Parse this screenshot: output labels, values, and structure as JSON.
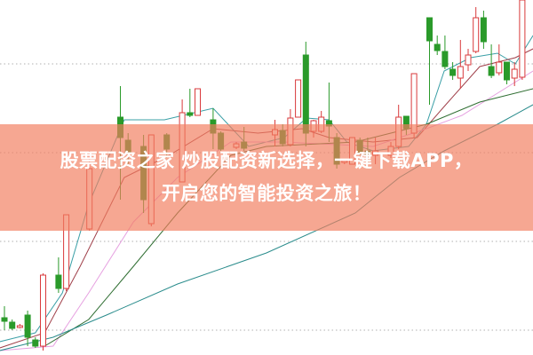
{
  "banner": {
    "line1": "股票配资之家 炒股配资新选择，一键下载APP，",
    "line2": "开启您的智能投资之旅！"
  },
  "chart_data": {
    "type": "candlestick",
    "title": "",
    "xlabel": "",
    "ylabel": "",
    "ylim": [
      0,
      100
    ],
    "xlim": [
      -0.6,
      68.4
    ],
    "grid": "horizontal dotted",
    "gridlines": [
      82,
      57,
      32,
      7
    ],
    "colors": {
      "up": "#d9393b",
      "down": "#2a9a2a",
      "grid": "#b0b0b0"
    },
    "candles_fields": [
      "index",
      "open",
      "close",
      "high",
      "low"
    ],
    "candles": [
      [
        0,
        10.5,
        9.5,
        13.75,
        7
      ],
      [
        1,
        9.25,
        7.5,
        10,
        7
      ],
      [
        2,
        7.75,
        8.25,
        8.75,
        7.5
      ],
      [
        3,
        11.25,
        5,
        12.5,
        2.5
      ],
      [
        4,
        4.25,
        2.5,
        5,
        2
      ],
      [
        5,
        2.5,
        22.5,
        23,
        1.25
      ],
      [
        7,
        22.5,
        18.75,
        27.5,
        17.5
      ],
      [
        8,
        18.75,
        39.5,
        39.5,
        18
      ],
      [
        11,
        35.5,
        52.5,
        57.5,
        35
      ],
      [
        15,
        67,
        61.25,
        75.75,
        43.75
      ],
      [
        16,
        60.5,
        57,
        62.5,
        53
      ],
      [
        18,
        58.75,
        43.75,
        62,
        40
      ],
      [
        19,
        37,
        62,
        62,
        36.25
      ],
      [
        21,
        62,
        58,
        62.5,
        55.5
      ],
      [
        23,
        48.75,
        68.25,
        72,
        48.75
      ],
      [
        24,
        68.25,
        67.5,
        75,
        67
      ],
      [
        25,
        67.5,
        75,
        75,
        67.5
      ],
      [
        27,
        66.25,
        62.5,
        69.5,
        58
      ],
      [
        28,
        62.5,
        58,
        63,
        57.5
      ],
      [
        30,
        58.5,
        59.5,
        60,
        58
      ],
      [
        31,
        60,
        58.25,
        64.25,
        57.5
      ],
      [
        35,
        62,
        63.5,
        66.25,
        58.75
      ],
      [
        36,
        63.25,
        59.5,
        65,
        58.75
      ],
      [
        37,
        59.25,
        66.75,
        69.25,
        58.75
      ],
      [
        38,
        67,
        77.5,
        77.5,
        67
      ],
      [
        39,
        84.5,
        62.5,
        88.25,
        58.75
      ],
      [
        40,
        63,
        66,
        66.25,
        61.25
      ],
      [
        41,
        63,
        67,
        68.75,
        62.5
      ],
      [
        42,
        66,
        64.5,
        76.75,
        60
      ],
      [
        43,
        61.25,
        53.75,
        62.5,
        52.5
      ],
      [
        44,
        54.25,
        54.75,
        55,
        53.75
      ],
      [
        45,
        53.75,
        61.25,
        61.25,
        53.75
      ],
      [
        46,
        60.5,
        57,
        61.25,
        56.25
      ],
      [
        47,
        57.5,
        56.25,
        61.25,
        53.75
      ],
      [
        48,
        56.25,
        57.5,
        61.25,
        53.75
      ],
      [
        50,
        56.25,
        58.75,
        60,
        55.5
      ],
      [
        51,
        58.75,
        67,
        70.5,
        58
      ],
      [
        52,
        67.25,
        63.75,
        67.25,
        62
      ],
      [
        53,
        62.5,
        79.25,
        79.25,
        61.25
      ],
      [
        55,
        95,
        88.5,
        95,
        70.5
      ],
      [
        56,
        87.5,
        85.75,
        90,
        84.5
      ],
      [
        57,
        85.5,
        81.25,
        90,
        80.5
      ],
      [
        58,
        80.5,
        78.75,
        82.5,
        77.5
      ],
      [
        59,
        78,
        81.25,
        88.75,
        75
      ],
      [
        60,
        81.75,
        84.5,
        86.25,
        80
      ],
      [
        61,
        85.5,
        95,
        98,
        85
      ],
      [
        62,
        95,
        88.25,
        97,
        86.25
      ],
      [
        63,
        81.25,
        78.75,
        87.5,
        78
      ],
      [
        64,
        79.5,
        82.5,
        87.5,
        78.75
      ],
      [
        65,
        82.5,
        77.5,
        82.5,
        76.25
      ],
      [
        66,
        78,
        80.5,
        82.5,
        75.75
      ],
      [
        67,
        78.25,
        100,
        100,
        77.5
      ]
    ],
    "moving_averages": [
      {
        "color": "#3a9fa6",
        "points": [
          [
            -0.6,
            3.75
          ],
          [
            4,
            6.25
          ],
          [
            7.5,
            17.5
          ],
          [
            10.9,
            42.5
          ],
          [
            15.5,
            66.25
          ],
          [
            20.7,
            66.25
          ],
          [
            27,
            69.5
          ],
          [
            31.6,
            58.75
          ],
          [
            36.2,
            61.25
          ],
          [
            39.1,
            66.75
          ],
          [
            42,
            66.25
          ],
          [
            44.3,
            60
          ],
          [
            47.7,
            57.5
          ],
          [
            52.3,
            58.75
          ],
          [
            54.6,
            65
          ],
          [
            56.9,
            80
          ],
          [
            60.3,
            83.75
          ],
          [
            63.8,
            85
          ],
          [
            66.1,
            82
          ],
          [
            68.4,
            90
          ]
        ]
      },
      {
        "color": "#a0404a",
        "points": [
          [
            -0.6,
            2
          ],
          [
            5.2,
            6.25
          ],
          [
            9.8,
            25
          ],
          [
            15.5,
            50
          ],
          [
            21.3,
            56.25
          ],
          [
            27,
            63.75
          ],
          [
            32.8,
            62.5
          ],
          [
            38.5,
            63.75
          ],
          [
            42,
            61.25
          ],
          [
            47.7,
            60
          ],
          [
            53.4,
            61.25
          ],
          [
            56.9,
            70
          ],
          [
            61.5,
            81.25
          ],
          [
            66.1,
            83.75
          ],
          [
            68.4,
            86.25
          ]
        ]
      },
      {
        "color": "#e6a0e0",
        "points": [
          [
            -0.6,
            1.25
          ],
          [
            6.3,
            2.5
          ],
          [
            10.9,
            17.5
          ],
          [
            16.7,
            37.5
          ],
          [
            22.4,
            50
          ],
          [
            29.3,
            60
          ],
          [
            36.2,
            60
          ],
          [
            47.7,
            58.75
          ],
          [
            54.6,
            63.75
          ],
          [
            59.2,
            67.5
          ],
          [
            63.8,
            73.75
          ],
          [
            68.4,
            80
          ]
        ]
      },
      {
        "color": "#2f6e32",
        "points": [
          [
            5.2,
            2.5
          ],
          [
            10.9,
            10
          ],
          [
            16.7,
            25
          ],
          [
            22.4,
            40
          ],
          [
            29.3,
            56.25
          ],
          [
            33.9,
            58.75
          ],
          [
            45.4,
            60
          ],
          [
            54.6,
            65
          ],
          [
            61.5,
            71.25
          ],
          [
            68.4,
            75
          ]
        ]
      },
      {
        "color": "#2a8c8c",
        "points": [
          [
            -0.6,
            1.25
          ],
          [
            6.3,
            5
          ],
          [
            13.2,
            11.25
          ],
          [
            22.4,
            20
          ],
          [
            33.9,
            28.75
          ],
          [
            45.4,
            40
          ],
          [
            51.1,
            50
          ],
          [
            56.9,
            57.5
          ],
          [
            63.8,
            65
          ],
          [
            68.4,
            70.5
          ]
        ]
      }
    ]
  }
}
